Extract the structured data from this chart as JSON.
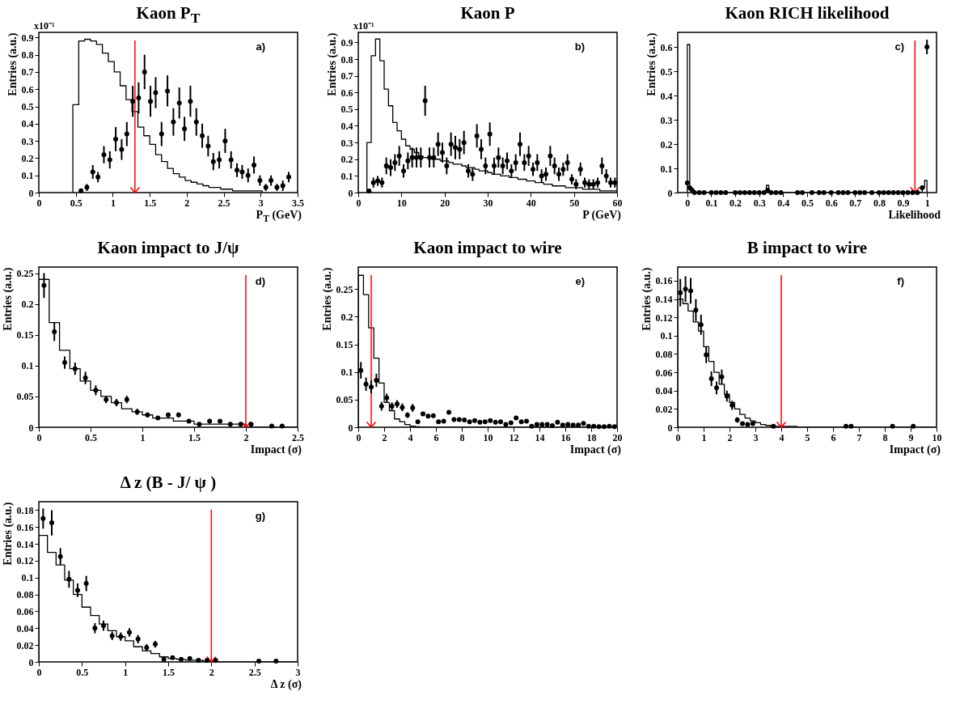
{
  "chart_data": [
    {
      "type": "histogram",
      "title": "Kaon P$_{T}$",
      "xlabel": "P$_{T}$ (GeV)",
      "ylabel": "Entries (a.u.)",
      "annotations": [
        "a)",
        "x10⁻¹"
      ],
      "xlim": [
        0,
        3.5
      ],
      "xticks": [
        0,
        0.5,
        1,
        1.5,
        2,
        2.5,
        3,
        3.5
      ],
      "ylim": [
        0,
        0.93
      ],
      "yticks": [
        0,
        0.1,
        0.2,
        0.3,
        0.4,
        0.5,
        0.6,
        0.7,
        0.8,
        0.9
      ],
      "ref_lines": [
        {
          "axis": "x",
          "value": 1.3,
          "color": "#ff0000"
        }
      ],
      "series": [
        {
          "type": "histogram",
          "color": "#000000",
          "bins": [
            0.46,
            0.54,
            0.62,
            0.7,
            0.78,
            0.86,
            0.94,
            1.02,
            1.1,
            1.18,
            1.26,
            1.34,
            1.42,
            1.5,
            1.58,
            1.66,
            1.74,
            1.82,
            1.9,
            1.98,
            2.06,
            2.14,
            2.22,
            2.3,
            2.38,
            2.46,
            2.54,
            2.62,
            2.7,
            2.78,
            2.86,
            2.94,
            3.02
          ],
          "values": [
            0.51,
            0.88,
            0.89,
            0.88,
            0.86,
            0.81,
            0.76,
            0.7,
            0.62,
            0.54,
            0.47,
            0.38,
            0.33,
            0.28,
            0.22,
            0.18,
            0.14,
            0.11,
            0.09,
            0.07,
            0.06,
            0.05,
            0.04,
            0.03,
            0.03,
            0.02,
            0.02,
            0.01,
            0.01,
            0.01,
            0.01,
            0.01
          ]
        },
        {
          "type": "scatter",
          "color": "#000000",
          "x": [
            0.57,
            0.65,
            0.73,
            0.8,
            0.88,
            0.96,
            1.04,
            1.12,
            1.19,
            1.27,
            1.35,
            1.43,
            1.51,
            1.58,
            1.66,
            1.74,
            1.82,
            1.9,
            1.97,
            2.05,
            2.13,
            2.21,
            2.29,
            2.36,
            2.44,
            2.52,
            2.6,
            2.68,
            2.75,
            2.83,
            2.91,
            2.99,
            3.07,
            3.14,
            3.22,
            3.3,
            3.38
          ],
          "values": [
            0.01,
            0.03,
            0.12,
            0.09,
            0.22,
            0.19,
            0.31,
            0.25,
            0.34,
            0.53,
            0.55,
            0.7,
            0.53,
            0.58,
            0.34,
            0.59,
            0.41,
            0.52,
            0.37,
            0.53,
            0.41,
            0.33,
            0.27,
            0.18,
            0.19,
            0.3,
            0.19,
            0.13,
            0.12,
            0.1,
            0.16,
            0.07,
            0.03,
            0.07,
            0.03,
            0.04,
            0.09
          ],
          "errors": [
            0.01,
            0.02,
            0.04,
            0.03,
            0.05,
            0.05,
            0.07,
            0.06,
            0.07,
            0.09,
            0.09,
            0.1,
            0.09,
            0.09,
            0.07,
            0.09,
            0.08,
            0.09,
            0.07,
            0.09,
            0.08,
            0.07,
            0.06,
            0.05,
            0.05,
            0.07,
            0.05,
            0.04,
            0.04,
            0.04,
            0.05,
            0.03,
            0.02,
            0.03,
            0.02,
            0.03,
            0.03
          ]
        }
      ]
    },
    {
      "type": "histogram",
      "title": "Kaon P",
      "xlabel": "P (GeV)",
      "ylabel": "Entries (a.u.)",
      "annotations": [
        "b)",
        "x10⁻¹"
      ],
      "xlim": [
        0,
        60
      ],
      "xticks": [
        0,
        10,
        20,
        30,
        40,
        50,
        60
      ],
      "ylim": [
        0,
        0.96
      ],
      "yticks": [
        0,
        0.1,
        0.2,
        0.3,
        0.4,
        0.5,
        0.6,
        0.7,
        0.8,
        0.9
      ],
      "series": [
        {
          "type": "histogram",
          "color": "#000000",
          "bins": [
            2,
            3,
            4,
            5,
            6,
            7,
            8,
            9,
            10,
            11,
            12,
            13,
            14,
            15,
            16,
            17,
            18,
            19,
            20,
            21,
            22,
            23,
            24,
            25,
            26,
            27,
            28,
            29,
            30,
            31,
            32,
            33,
            34,
            35,
            36,
            37,
            38,
            39,
            40,
            41,
            42,
            43,
            44,
            45,
            46,
            47,
            48,
            49,
            50,
            51,
            52,
            53,
            54,
            55,
            56,
            57,
            58,
            59,
            60
          ],
          "values": [
            0.3,
            0.82,
            0.92,
            0.79,
            0.62,
            0.52,
            0.42,
            0.37,
            0.32,
            0.28,
            0.26,
            0.24,
            0.22,
            0.21,
            0.21,
            0.2,
            0.2,
            0.19,
            0.19,
            0.18,
            0.17,
            0.17,
            0.16,
            0.15,
            0.15,
            0.14,
            0.13,
            0.13,
            0.12,
            0.11,
            0.11,
            0.1,
            0.1,
            0.09,
            0.09,
            0.08,
            0.08,
            0.07,
            0.07,
            0.06,
            0.06,
            0.05,
            0.05,
            0.04,
            0.04,
            0.04,
            0.03,
            0.03,
            0.03,
            0.03,
            0.02,
            0.02,
            0.02,
            0.02,
            0.01,
            0.01,
            0.01,
            0.01
          ]
        },
        {
          "type": "scatter",
          "color": "#000000",
          "x": [
            2.5,
            3.5,
            4.5,
            5.5,
            6.5,
            7.5,
            8.5,
            9.5,
            10.5,
            11.5,
            12.5,
            13.5,
            14.5,
            15.5,
            16.5,
            17.5,
            18.5,
            19.5,
            20.5,
            21.5,
            22.5,
            23.5,
            24.5,
            25.5,
            26.5,
            27.5,
            28.5,
            29.5,
            30.5,
            31.5,
            32.5,
            33.5,
            34.5,
            35.5,
            36.5,
            37.5,
            38.5,
            39.5,
            40.5,
            41.5,
            42.5,
            43.5,
            44.5,
            45.5,
            46.5,
            47.5,
            48.5,
            49.5,
            50.5,
            51.5,
            52.5,
            53.5,
            54.5,
            55.5,
            56.5,
            57.5,
            58.5,
            59.5
          ],
          "values": [
            0.01,
            0.06,
            0.07,
            0.06,
            0.16,
            0.15,
            0.18,
            0.22,
            0.13,
            0.19,
            0.21,
            0.21,
            0.21,
            0.55,
            0.21,
            0.21,
            0.29,
            0.24,
            0.16,
            0.29,
            0.27,
            0.26,
            0.3,
            0.13,
            0.11,
            0.34,
            0.26,
            0.16,
            0.35,
            0.16,
            0.21,
            0.16,
            0.19,
            0.13,
            0.18,
            0.29,
            0.18,
            0.22,
            0.14,
            0.18,
            0.1,
            0.11,
            0.22,
            0.16,
            0.11,
            0.14,
            0.18,
            0.08,
            0.05,
            0.14,
            0.06,
            0.05,
            0.05,
            0.06,
            0.16,
            0.1,
            0.06,
            0.06
          ],
          "errors": [
            0.01,
            0.03,
            0.03,
            0.03,
            0.05,
            0.05,
            0.05,
            0.06,
            0.04,
            0.05,
            0.06,
            0.06,
            0.06,
            0.09,
            0.06,
            0.06,
            0.07,
            0.06,
            0.05,
            0.07,
            0.07,
            0.06,
            0.07,
            0.04,
            0.04,
            0.07,
            0.06,
            0.05,
            0.07,
            0.05,
            0.06,
            0.05,
            0.05,
            0.04,
            0.05,
            0.07,
            0.05,
            0.06,
            0.04,
            0.05,
            0.04,
            0.04,
            0.06,
            0.05,
            0.04,
            0.04,
            0.05,
            0.03,
            0.03,
            0.04,
            0.03,
            0.03,
            0.03,
            0.03,
            0.05,
            0.04,
            0.03,
            0.03
          ]
        }
      ]
    },
    {
      "type": "histogram",
      "title": "Kaon RICH likelihood",
      "xlabel": "Likelihood",
      "ylabel": "Entries (a.u.)",
      "annotations": [
        "c)"
      ],
      "xlim": [
        -0.04,
        1.04
      ],
      "xticks": [
        0,
        0.1,
        0.2,
        0.3,
        0.4,
        0.5,
        0.6,
        0.7,
        0.8,
        0.9,
        1
      ],
      "ylim": [
        0,
        0.66
      ],
      "yticks": [
        0,
        0.1,
        0.2,
        0.3,
        0.4,
        0.5,
        0.6
      ],
      "ref_lines": [
        {
          "axis": "x",
          "value": 0.95,
          "color": "#ff0000"
        }
      ],
      "series": [
        {
          "type": "histogram",
          "color": "#000000",
          "bins": [
            0,
            0.01,
            0.02,
            0.33,
            0.34,
            0.98,
            0.99,
            1
          ],
          "values": [
            0.61,
            0.01,
            0,
            0.03,
            0,
            0.02,
            0.05
          ]
        },
        {
          "type": "scatter",
          "color": "#000000",
          "x": [
            0,
            0.01,
            0.02,
            0.03,
            0.05,
            0.07,
            0.1,
            0.12,
            0.14,
            0.16,
            0.2,
            0.22,
            0.24,
            0.26,
            0.28,
            0.3,
            0.32,
            0.335,
            0.35,
            0.37,
            0.39,
            0.46,
            0.48,
            0.52,
            0.55,
            0.57,
            0.6,
            0.63,
            0.65,
            0.67,
            0.7,
            0.72,
            0.74,
            0.77,
            0.8,
            0.82,
            0.84,
            0.86,
            0.88,
            0.9,
            0.92,
            0.94,
            0.96,
            0.98,
            1
          ],
          "values": [
            0.04,
            0.02,
            0.01,
            0,
            0,
            0,
            0,
            0,
            0,
            0,
            0,
            0,
            0,
            0,
            0,
            0,
            0,
            0.01,
            0,
            0,
            0,
            0,
            0,
            0,
            0,
            0,
            0,
            0,
            0,
            0,
            0,
            0,
            0,
            0,
            0,
            0,
            0,
            0,
            0,
            0,
            0,
            0,
            0,
            0.02,
            0.6
          ],
          "errors": [
            null,
            null,
            null,
            null,
            null,
            null,
            null,
            null,
            null,
            null,
            null,
            null,
            null,
            null,
            null,
            null,
            null,
            null,
            null,
            null,
            null,
            null,
            null,
            null,
            null,
            null,
            null,
            null,
            null,
            null,
            null,
            null,
            null,
            null,
            null,
            null,
            null,
            null,
            null,
            null,
            null,
            null,
            null,
            null,
            0.03
          ]
        }
      ]
    },
    {
      "type": "histogram",
      "title": "Kaon impact to J/ψ",
      "xlabel": "Impact (σ)",
      "ylabel": "Entries (a.u.)",
      "annotations": [
        "d)"
      ],
      "xlim": [
        0,
        2.5
      ],
      "xticks": [
        0,
        0.5,
        1,
        1.5,
        2,
        2.5
      ],
      "ylim": [
        0,
        0.26
      ],
      "yticks": [
        0,
        0.05,
        0.1,
        0.15,
        0.2,
        0.25
      ],
      "ref_lines": [
        {
          "axis": "x",
          "value": 2,
          "color": "#ff0000"
        }
      ],
      "series": [
        {
          "type": "histogram",
          "color": "#000000",
          "bins": [
            0,
            0.1,
            0.2,
            0.3,
            0.4,
            0.5,
            0.6,
            0.7,
            0.8,
            0.9,
            1,
            1.1,
            1.2,
            1.3,
            1.4,
            1.5,
            1.6,
            1.7,
            1.8,
            1.9,
            2,
            2.1,
            2.2,
            2.3,
            2.4,
            2.5
          ],
          "values": [
            0.24,
            0.17,
            0.125,
            0.095,
            0.075,
            0.06,
            0.05,
            0.04,
            0.03,
            0.025,
            0.02,
            0.015,
            0.015,
            0.01,
            0.01,
            0.005,
            0.005,
            0.005,
            0.005,
            0.005,
            0,
            0,
            0,
            0,
            0
          ]
        },
        {
          "type": "scatter",
          "color": "#000000",
          "x": [
            0.05,
            0.15,
            0.25,
            0.35,
            0.45,
            0.55,
            0.65,
            0.75,
            0.85,
            0.95,
            1.05,
            1.15,
            1.25,
            1.35,
            1.45,
            1.55,
            1.65,
            1.75,
            1.85,
            1.95,
            2.05,
            2.25,
            2.35
          ],
          "values": [
            0.23,
            0.155,
            0.105,
            0.095,
            0.08,
            0.06,
            0.045,
            0.04,
            0.045,
            0.025,
            0.02,
            0.015,
            0.02,
            0.02,
            0.01,
            0.005,
            0.01,
            0.01,
            0.005,
            0.005,
            0.005,
            0.002,
            0.002
          ],
          "errors": [
            0.02,
            0.015,
            0.01,
            0.01,
            0.01,
            0.008,
            0.006,
            0.006,
            0.006,
            0.005,
            0.004,
            0.003,
            0.004,
            0.004,
            0.003,
            null,
            null,
            null,
            null,
            null,
            null,
            null,
            null
          ]
        }
      ]
    },
    {
      "type": "histogram",
      "title": "Kaon impact to wire",
      "xlabel": "Impact (σ)",
      "ylabel": "Entries (a.u.)",
      "annotations": [
        "e)"
      ],
      "xlim": [
        0,
        20
      ],
      "xticks": [
        0,
        2,
        4,
        6,
        8,
        10,
        12,
        14,
        16,
        18,
        20
      ],
      "ylim": [
        0,
        0.29
      ],
      "yticks": [
        0,
        0.05,
        0.1,
        0.15,
        0.2,
        0.25
      ],
      "ref_lines": [
        {
          "axis": "x",
          "value": 1,
          "color": "#ff0000"
        }
      ],
      "series": [
        {
          "type": "histogram",
          "color": "#000000",
          "bins": [
            0,
            0.4,
            0.8,
            1.2,
            1.6,
            2,
            2.4,
            2.8,
            3.2,
            3.6,
            4,
            4.4,
            4.8,
            20
          ],
          "values": [
            0.275,
            0.24,
            0.18,
            0.125,
            0.08,
            0.045,
            0.03,
            0.015,
            0.01,
            0.005,
            0.002,
            0.001,
            0
          ]
        },
        {
          "type": "scatter",
          "color": "#000000",
          "x": [
            0.2,
            0.6,
            1,
            1.4,
            1.8,
            2.2,
            2.6,
            3,
            3.4,
            3.8,
            4.2,
            4.6,
            5,
            5.4,
            5.8,
            6.2,
            6.6,
            7,
            7.4,
            7.8,
            8.2,
            8.6,
            9,
            9.4,
            9.8,
            10.2,
            10.6,
            11,
            11.4,
            11.8,
            12.2,
            12.6,
            13,
            13.4,
            13.8,
            14.2,
            14.6,
            15,
            15.4,
            15.8,
            16.2,
            16.6,
            17,
            17.4,
            17.8,
            18.2,
            18.6,
            19,
            19.4,
            19.8
          ],
          "values": [
            0.103,
            0.078,
            0.073,
            0.085,
            0.038,
            0.053,
            0.038,
            0.042,
            0.036,
            0.022,
            0.035,
            0.01,
            0.024,
            0.02,
            0.021,
            0.01,
            0.011,
            0.027,
            0.014,
            0.014,
            0.013,
            0.01,
            0.012,
            0.009,
            0.01,
            0.012,
            0.009,
            0.01,
            0.005,
            0.008,
            0.017,
            0.01,
            0.011,
            0.002,
            0.005,
            0.005,
            0.005,
            0.003,
            0.009,
            0.004,
            0.005,
            0.004,
            0.004,
            0.007,
            0.002,
            0.002,
            0.001,
            0.001,
            0.002,
            0.001
          ],
          "errors": [
            0.015,
            0.012,
            0.012,
            0.012,
            0.008,
            0.008,
            0.007,
            0.007,
            0.007,
            0.005,
            0.007,
            null,
            null,
            null,
            null,
            null,
            null,
            null,
            null,
            null,
            null,
            null,
            null,
            null,
            null,
            null,
            null,
            null,
            null,
            null,
            null,
            null,
            null,
            null,
            null,
            null,
            null,
            null,
            null,
            null,
            null,
            null,
            null,
            null,
            null,
            null,
            null,
            null,
            null,
            null
          ]
        }
      ]
    },
    {
      "type": "histogram",
      "title": "B impact to wire",
      "xlabel": "Impact (σ)",
      "ylabel": "Entries (a.u.)",
      "annotations": [
        "f)"
      ],
      "xlim": [
        0,
        10
      ],
      "xticks": [
        0,
        1,
        2,
        3,
        4,
        5,
        6,
        7,
        8,
        9,
        10
      ],
      "ylim": [
        0,
        0.175
      ],
      "yticks": [
        0,
        0.02,
        0.04,
        0.06,
        0.08,
        0.1,
        0.12,
        0.14,
        0.16
      ],
      "ref_lines": [
        {
          "axis": "x",
          "value": 4,
          "color": "#ff0000"
        }
      ],
      "series": [
        {
          "type": "histogram",
          "color": "#000000",
          "bins": [
            0,
            0.2,
            0.4,
            0.6,
            0.8,
            1,
            1.2,
            1.4,
            1.6,
            1.8,
            2,
            2.2,
            2.4,
            2.6,
            2.8,
            3,
            3.2,
            3.4,
            3.6,
            3.8,
            4,
            4.2,
            4.4,
            4.6,
            4.8,
            5,
            10
          ],
          "values": [
            0.14,
            0.135,
            0.127,
            0.115,
            0.105,
            0.088,
            0.072,
            0.06,
            0.047,
            0.036,
            0.027,
            0.02,
            0.014,
            0.01,
            0.007,
            0.005,
            0.003,
            0.002,
            0.001,
            0.001,
            0.001,
            0.001,
            0.001,
            0,
            0,
            0
          ]
        },
        {
          "type": "scatter",
          "color": "#000000",
          "x": [
            0.1,
            0.3,
            0.5,
            0.7,
            0.9,
            1.1,
            1.3,
            1.5,
            1.7,
            1.9,
            2.1,
            2.3,
            2.5,
            2.7,
            2.9,
            3.7,
            6.5,
            6.7,
            8.3,
            9.1
          ],
          "values": [
            0.147,
            0.151,
            0.149,
            0.128,
            0.112,
            0.079,
            0.053,
            0.043,
            0.055,
            0.034,
            0.024,
            0.008,
            0.004,
            0.003,
            0.004,
            0.001,
            0.001,
            0.001,
            0.001,
            0.001
          ],
          "errors": [
            0.015,
            0.014,
            0.014,
            0.012,
            0.011,
            0.009,
            0.008,
            0.007,
            0.008,
            0.006,
            0.005,
            0.003,
            null,
            null,
            null,
            null,
            null,
            null,
            null,
            null
          ]
        }
      ]
    },
    {
      "type": "histogram",
      "title": "Δ z (B - J/ ψ )",
      "xlabel": "Δ z (σ)",
      "ylabel": "Entries (a.u.)",
      "annotations": [
        "g)"
      ],
      "xlim": [
        0,
        3
      ],
      "xticks": [
        0,
        0.5,
        1,
        1.5,
        2,
        2.5,
        3
      ],
      "ylim": [
        0,
        0.19
      ],
      "yticks": [
        0,
        0.02,
        0.04,
        0.06,
        0.08,
        0.1,
        0.12,
        0.14,
        0.16,
        0.18
      ],
      "ref_lines": [
        {
          "axis": "x",
          "value": 2,
          "color": "#ff0000"
        }
      ],
      "series": [
        {
          "type": "histogram",
          "color": "#000000",
          "bins": [
            0,
            0.1,
            0.2,
            0.3,
            0.4,
            0.5,
            0.6,
            0.7,
            0.8,
            0.9,
            1,
            1.1,
            1.2,
            1.3,
            1.4,
            1.5,
            1.6,
            1.7,
            1.8,
            1.9,
            2,
            3
          ],
          "values": [
            0.15,
            0.13,
            0.115,
            0.097,
            0.08,
            0.065,
            0.055,
            0.045,
            0.037,
            0.03,
            0.025,
            0.018,
            0.013,
            0.01,
            0.006,
            0.004,
            0.003,
            0.002,
            0.002,
            0.001,
            0
          ]
        },
        {
          "type": "scatter",
          "color": "#000000",
          "x": [
            0.05,
            0.15,
            0.25,
            0.35,
            0.45,
            0.55,
            0.65,
            0.75,
            0.85,
            0.95,
            1.05,
            1.15,
            1.25,
            1.35,
            1.45,
            1.55,
            1.65,
            1.75,
            1.85,
            1.95,
            2.05,
            2.55,
            2.75
          ],
          "values": [
            0.17,
            0.165,
            0.125,
            0.098,
            0.085,
            0.093,
            0.04,
            0.043,
            0.031,
            0.03,
            0.035,
            0.027,
            0.017,
            0.021,
            0.003,
            0.005,
            0.003,
            0.004,
            0.002,
            0.002,
            0.002,
            0.001,
            0.001
          ],
          "errors": [
            0.012,
            0.015,
            0.01,
            0.01,
            0.008,
            0.009,
            0.006,
            0.006,
            0.005,
            0.005,
            0.005,
            0.005,
            0.004,
            0.004,
            null,
            null,
            null,
            null,
            null,
            null,
            null,
            null,
            null
          ]
        }
      ]
    }
  ]
}
